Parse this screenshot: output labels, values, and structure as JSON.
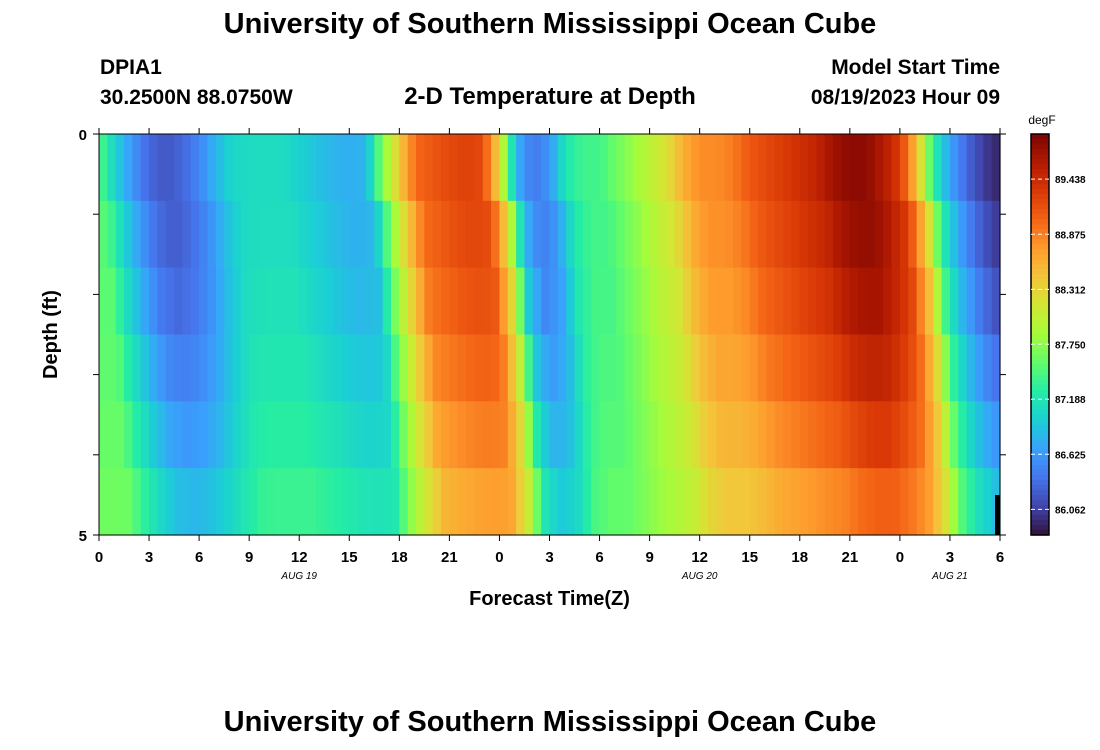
{
  "page": {
    "title": "University of Southern Mississippi Ocean Cube",
    "footer_title": "University of Southern Mississippi Ocean Cube",
    "station_id": "DPIA1",
    "coordinates": "30.2500N  88.0750W",
    "plot_title": "2-D Temperature at Depth",
    "model_start_label": "Model Start Time",
    "model_start_value": "08/19/2023 Hour 09"
  },
  "chart_data": {
    "type": "heatmap",
    "title": "2-D Temperature at Depth",
    "xlabel": "Forecast Time(Z)",
    "ylabel": "Depth (ft)",
    "x_tick_labels": [
      "0",
      "3",
      "6",
      "9",
      "12",
      "15",
      "18",
      "21",
      "0",
      "3",
      "6",
      "9",
      "12",
      "15",
      "18",
      "21",
      "0",
      "3",
      "6"
    ],
    "x_hours": [
      0,
      3,
      6,
      9,
      12,
      15,
      18,
      21,
      24,
      27,
      30,
      33,
      36,
      39,
      42,
      45,
      48,
      51,
      54
    ],
    "date_labels": [
      {
        "label": "AUG 19",
        "hour": 12
      },
      {
        "label": "AUG 20",
        "hour": 36
      },
      {
        "label": "AUG 21",
        "hour": 51
      }
    ],
    "xlim": [
      0,
      54
    ],
    "y_tick_labels": [
      "0",
      "5"
    ],
    "ylim": [
      0,
      5
    ],
    "depth_levels": [
      0,
      1,
      2,
      3,
      4,
      5
    ],
    "colorbar": {
      "unit": "degF",
      "ticks": [
        "89.438",
        "88.875",
        "88.312",
        "87.750",
        "87.188",
        "86.625",
        "86.062"
      ],
      "range": [
        85.8,
        89.9
      ]
    },
    "colormap": [
      "#30123b",
      "#4145ab",
      "#4675ed",
      "#39a2fc",
      "#1bcfd4",
      "#24eca6",
      "#61fc6c",
      "#a4fc3b",
      "#d1e834",
      "#f3c63a",
      "#fe9b2d",
      "#f36315",
      "#d93806",
      "#b11901",
      "#7a0402"
    ],
    "palette_hex": [
      "#30123b",
      "#7a0402",
      "#000000"
    ],
    "hours_per_column": 0.5,
    "surface_series_hourly": [
      87.5,
      87.0,
      86.6,
      86.3,
      86.2,
      86.3,
      86.5,
      86.8,
      87.05,
      87.1,
      87.1,
      87.1,
      87.0,
      86.9,
      86.8,
      86.75,
      86.8,
      87.7,
      88.4,
      89.0,
      89.1,
      89.2,
      89.25,
      89.2,
      88.3,
      86.8,
      86.4,
      86.6,
      87.2,
      87.4,
      87.4,
      87.6,
      87.8,
      88.0,
      88.2,
      88.6,
      88.8,
      88.8,
      88.9,
      89.1,
      89.2,
      89.3,
      89.4,
      89.5,
      89.7,
      89.8,
      89.8,
      89.6,
      89.3,
      88.5,
      87.3,
      86.7,
      86.3,
      86.05,
      85.9
    ],
    "depth_lag_hours": [
      0,
      0.5,
      0.8,
      1.1,
      1.4,
      1.7
    ],
    "depth_damping": [
      1.0,
      0.98,
      0.93,
      0.85,
      0.75,
      0.62
    ]
  }
}
